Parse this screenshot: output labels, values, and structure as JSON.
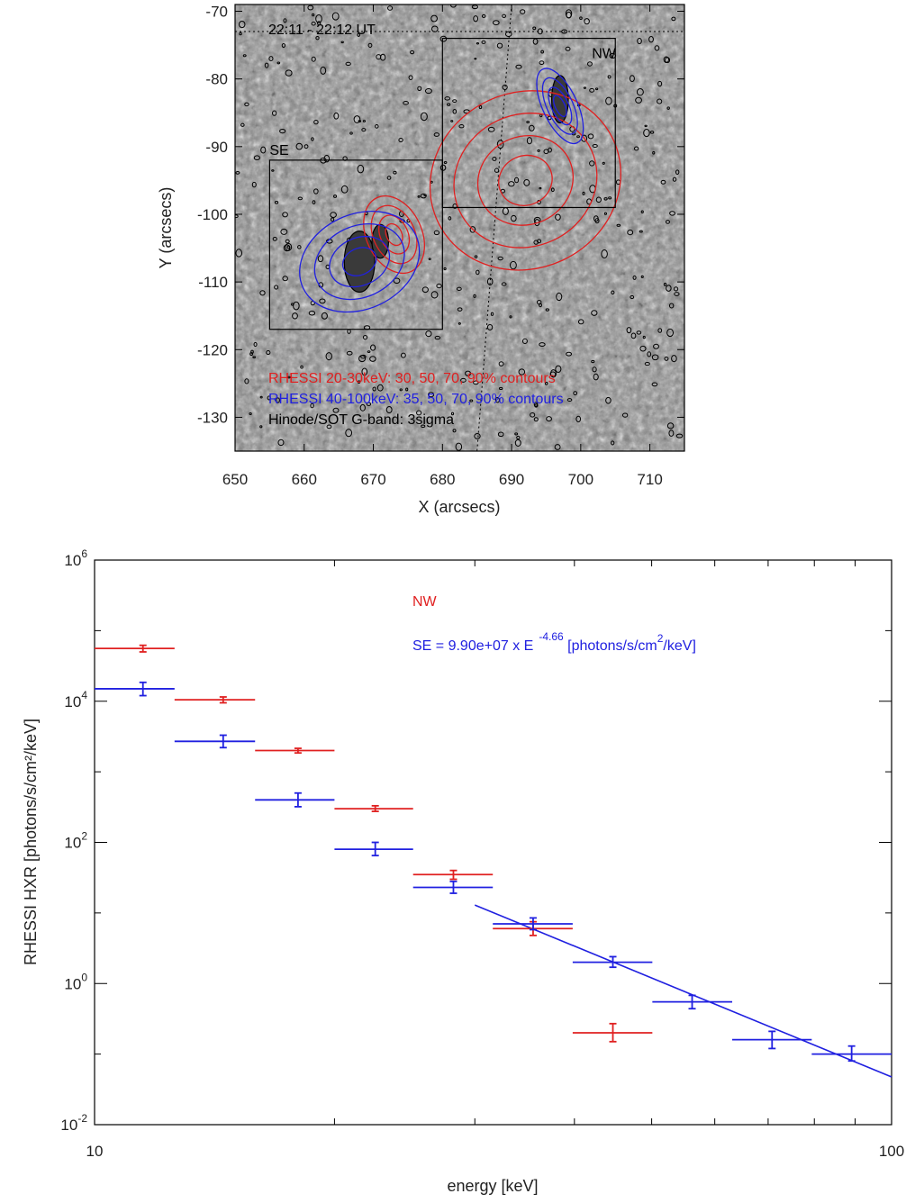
{
  "chart_data": [
    {
      "type": "image-contour",
      "time_label": "22:11 - 22:12 UT",
      "xlabel": "X (arcsecs)",
      "ylabel": "Y (arcsecs)",
      "xlim": [
        650,
        715
      ],
      "ylim": [
        -135,
        -69
      ],
      "xticks": [
        650,
        660,
        670,
        680,
        690,
        700,
        710
      ],
      "yticks": [
        -70,
        -80,
        -90,
        -100,
        -110,
        -120,
        -130
      ],
      "boxes": [
        {
          "label": "SE",
          "x": [
            655,
            680
          ],
          "y": [
            -117,
            -92
          ]
        },
        {
          "label": "NW",
          "x": [
            680,
            705
          ],
          "y": [
            -99,
            -74
          ]
        }
      ],
      "contour_sets": [
        {
          "name": "RHESSI 20-30keV: 30, 50, 70, 90% contours",
          "color": "#e02020",
          "sources": [
            {
              "cx": 692,
              "cy": -95,
              "rx_outer": 14,
              "ry_outer": 13
            },
            {
              "cx": 673,
              "cy": -103,
              "rx_outer": 4,
              "ry_outer": 6
            }
          ]
        },
        {
          "name": "RHESSI 40-100keV: 35, 50, 70, 90% contours",
          "color": "#2020e0",
          "sources": [
            {
              "cx": 668,
              "cy": -107,
              "rx_outer": 9,
              "ry_outer": 7
            },
            {
              "cx": 697,
              "cy": -84,
              "rx_outer": 2.5,
              "ry_outer": 6
            }
          ]
        }
      ],
      "legend": [
        {
          "text": "RHESSI 20-30keV: 30, 50, 70, 90% contours",
          "color": "#e02020"
        },
        {
          "text": "RHESSI 40-100keV: 35, 50, 70, 90% contours",
          "color": "#2020e0"
        },
        {
          "text": "Hinode/SOT G-band: 3sigma",
          "color": "#000000"
        }
      ]
    },
    {
      "type": "scatter",
      "xscale": "log",
      "yscale": "log",
      "xlabel": "energy [keV]",
      "ylabel": "RHESSI HXR [photons/s/cm²/keV]",
      "xlim": [
        10,
        100
      ],
      "ylim": [
        0.01,
        1000000
      ],
      "xtick_labels": [
        "10",
        "100"
      ],
      "ytick_labels": [
        "10^-2",
        "10^0",
        "10^2",
        "10^4",
        "10^6"
      ],
      "series": [
        {
          "name": "NW",
          "color": "#e02020",
          "points": [
            {
              "e": 11.5,
              "e_lo": 10.0,
              "e_hi": 12.6,
              "v": 56000,
              "lo": 50000,
              "hi": 62000
            },
            {
              "e": 14.5,
              "e_lo": 12.6,
              "e_hi": 15.9,
              "v": 10500,
              "lo": 9500,
              "hi": 11500
            },
            {
              "e": 18.0,
              "e_lo": 15.9,
              "e_hi": 20.0,
              "v": 2000,
              "lo": 1850,
              "hi": 2150
            },
            {
              "e": 22.5,
              "e_lo": 20.0,
              "e_hi": 25.1,
              "v": 300,
              "lo": 275,
              "hi": 330
            },
            {
              "e": 28.2,
              "e_lo": 25.1,
              "e_hi": 31.6,
              "v": 35,
              "lo": 30,
              "hi": 40
            },
            {
              "e": 35.5,
              "e_lo": 31.6,
              "e_hi": 39.8,
              "v": 6.0,
              "lo": 4.8,
              "hi": 7.5
            },
            {
              "e": 44.7,
              "e_lo": 39.8,
              "e_hi": 50.1,
              "v": 0.2,
              "lo": 0.15,
              "hi": 0.27
            }
          ]
        },
        {
          "name": "SE",
          "color": "#2020e0",
          "points": [
            {
              "e": 11.5,
              "e_lo": 10.0,
              "e_hi": 12.6,
              "v": 15000,
              "lo": 12000,
              "hi": 18500
            },
            {
              "e": 14.5,
              "e_lo": 12.6,
              "e_hi": 15.9,
              "v": 2700,
              "lo": 2200,
              "hi": 3300
            },
            {
              "e": 18.0,
              "e_lo": 15.9,
              "e_hi": 20.0,
              "v": 400,
              "lo": 320,
              "hi": 500
            },
            {
              "e": 22.5,
              "e_lo": 20.0,
              "e_hi": 25.1,
              "v": 80,
              "lo": 65,
              "hi": 100
            },
            {
              "e": 28.2,
              "e_lo": 25.1,
              "e_hi": 31.6,
              "v": 23,
              "lo": 19,
              "hi": 28
            },
            {
              "e": 35.5,
              "e_lo": 31.6,
              "e_hi": 39.8,
              "v": 7.0,
              "lo": 5.8,
              "hi": 8.5
            },
            {
              "e": 44.7,
              "e_lo": 39.8,
              "e_hi": 50.1,
              "v": 2.0,
              "lo": 1.7,
              "hi": 2.4
            },
            {
              "e": 56.2,
              "e_lo": 50.1,
              "e_hi": 63.1,
              "v": 0.55,
              "lo": 0.44,
              "hi": 0.68
            },
            {
              "e": 70.8,
              "e_lo": 63.1,
              "e_hi": 79.4,
              "v": 0.16,
              "lo": 0.12,
              "hi": 0.21
            },
            {
              "e": 89.1,
              "e_lo": 79.4,
              "e_hi": 100.0,
              "v": 0.1,
              "lo": 0.08,
              "hi": 0.13
            }
          ]
        }
      ],
      "fit": {
        "color": "#2020e0",
        "A": 99000000,
        "index": -4.66,
        "x_range": [
          30,
          100
        ]
      },
      "annotations": {
        "nw_label": "NW",
        "se_label": "SE = 9.90e+07 x E",
        "se_exp": "-4.66",
        "se_units_a": " [photons/s/cm",
        "se_units_sup": "2",
        "se_units_b": "/keV]"
      }
    }
  ]
}
